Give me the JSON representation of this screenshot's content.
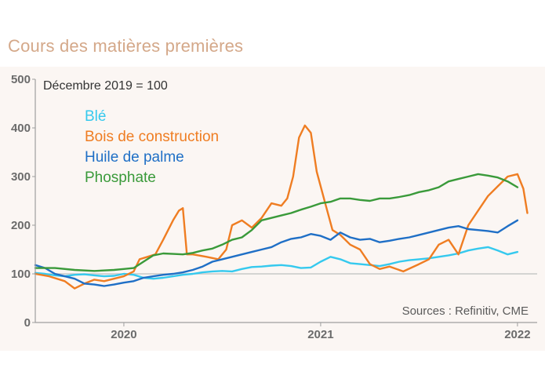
{
  "title": "Cours des matières premières",
  "chart_data": {
    "type": "line",
    "subtitle": "Décembre 2019 = 100",
    "source": "Sources : Refinitiv, CME",
    "ylim": [
      0,
      500
    ],
    "yticks": [
      "0",
      "100",
      "200",
      "300",
      "400",
      "500"
    ],
    "xlim": [
      2019.55,
      2022.1
    ],
    "xticks": [
      {
        "label": "2020",
        "value": 2020.0
      },
      {
        "label": "2021",
        "value": 2021.0
      },
      {
        "label": "2022",
        "value": 2022.0
      }
    ],
    "colors": {
      "ble": "#35c9ee",
      "bois": "#ef7d22",
      "huile": "#1f6fc6",
      "phosphate": "#3a9a3a",
      "axis": "#9e9e9e",
      "grid": "#c8c8c8"
    },
    "series": [
      {
        "name": "Blé",
        "key": "ble",
        "x": [
          2019.55,
          2019.6,
          2019.65,
          2019.7,
          2019.75,
          2019.8,
          2019.85,
          2019.9,
          2019.95,
          2020.0,
          2020.05,
          2020.1,
          2020.15,
          2020.2,
          2020.25,
          2020.3,
          2020.35,
          2020.4,
          2020.45,
          2020.5,
          2020.55,
          2020.6,
          2020.65,
          2020.7,
          2020.75,
          2020.8,
          2020.85,
          2020.9,
          2020.95,
          2021.0,
          2021.05,
          2021.1,
          2021.15,
          2021.2,
          2021.25,
          2021.3,
          2021.35,
          2021.4,
          2021.45,
          2021.5,
          2021.55,
          2021.6,
          2021.65,
          2021.7,
          2021.75,
          2021.8,
          2021.85,
          2021.9,
          2021.95,
          2022.0
        ],
        "values": [
          102,
          100,
          97,
          95,
          98,
          99,
          97,
          95,
          96,
          100,
          98,
          92,
          90,
          92,
          95,
          98,
          100,
          103,
          105,
          106,
          105,
          110,
          114,
          115,
          117,
          118,
          116,
          112,
          113,
          125,
          135,
          130,
          122,
          120,
          118,
          116,
          120,
          125,
          128,
          130,
          132,
          135,
          138,
          142,
          148,
          152,
          155,
          148,
          140,
          145
        ]
      },
      {
        "name": "Bois de construction",
        "key": "bois",
        "x": [
          2019.55,
          2019.62,
          2019.7,
          2019.75,
          2019.8,
          2019.85,
          2019.9,
          2019.95,
          2020.0,
          2020.05,
          2020.08,
          2020.12,
          2020.16,
          2020.2,
          2020.25,
          2020.28,
          2020.3,
          2020.32,
          2020.35,
          2020.42,
          2020.48,
          2020.52,
          2020.55,
          2020.6,
          2020.65,
          2020.7,
          2020.75,
          2020.8,
          2020.83,
          2020.86,
          2020.89,
          2020.92,
          2020.95,
          2020.98,
          2021.02,
          2021.06,
          2021.1,
          2021.15,
          2021.2,
          2021.25,
          2021.3,
          2021.35,
          2021.42,
          2021.5,
          2021.55,
          2021.6,
          2021.65,
          2021.7,
          2021.75,
          2021.8,
          2021.85,
          2021.9,
          2021.95,
          2022.0,
          2022.03,
          2022.05
        ],
        "values": [
          100,
          95,
          85,
          70,
          80,
          88,
          85,
          90,
          95,
          105,
          130,
          135,
          140,
          170,
          210,
          230,
          235,
          140,
          140,
          135,
          130,
          150,
          200,
          210,
          195,
          215,
          245,
          240,
          255,
          300,
          380,
          405,
          390,
          310,
          250,
          190,
          180,
          160,
          150,
          120,
          110,
          115,
          105,
          120,
          130,
          160,
          170,
          140,
          200,
          230,
          260,
          280,
          300,
          305,
          275,
          225
        ]
      },
      {
        "name": "Huile de palme",
        "key": "huile",
        "x": [
          2019.55,
          2019.6,
          2019.65,
          2019.7,
          2019.75,
          2019.8,
          2019.85,
          2019.9,
          2019.95,
          2020.0,
          2020.05,
          2020.1,
          2020.15,
          2020.2,
          2020.25,
          2020.3,
          2020.35,
          2020.4,
          2020.45,
          2020.5,
          2020.55,
          2020.6,
          2020.65,
          2020.7,
          2020.75,
          2020.8,
          2020.85,
          2020.9,
          2020.95,
          2021.0,
          2021.05,
          2021.1,
          2021.15,
          2021.2,
          2021.25,
          2021.3,
          2021.35,
          2021.4,
          2021.45,
          2021.5,
          2021.55,
          2021.6,
          2021.65,
          2021.7,
          2021.75,
          2021.8,
          2021.85,
          2021.9,
          2021.95,
          2022.0
        ],
        "values": [
          118,
          112,
          100,
          95,
          90,
          80,
          78,
          75,
          78,
          82,
          85,
          92,
          95,
          98,
          100,
          103,
          108,
          115,
          125,
          130,
          135,
          140,
          145,
          150,
          155,
          165,
          172,
          175,
          182,
          178,
          170,
          185,
          175,
          170,
          172,
          165,
          168,
          172,
          175,
          180,
          185,
          190,
          195,
          198,
          192,
          190,
          188,
          185,
          198,
          210
        ]
      },
      {
        "name": "Phosphate",
        "key": "phosphate",
        "x": [
          2019.55,
          2019.65,
          2019.75,
          2019.85,
          2019.95,
          2020.0,
          2020.05,
          2020.1,
          2020.15,
          2020.2,
          2020.25,
          2020.3,
          2020.35,
          2020.4,
          2020.45,
          2020.5,
          2020.55,
          2020.6,
          2020.65,
          2020.7,
          2020.75,
          2020.8,
          2020.85,
          2020.9,
          2020.95,
          2021.0,
          2021.05,
          2021.1,
          2021.15,
          2021.2,
          2021.25,
          2021.3,
          2021.35,
          2021.4,
          2021.45,
          2021.5,
          2021.55,
          2021.6,
          2021.65,
          2021.7,
          2021.75,
          2021.8,
          2021.85,
          2021.9,
          2021.95,
          2022.0
        ],
        "values": [
          112,
          112,
          108,
          106,
          108,
          110,
          112,
          125,
          138,
          142,
          141,
          140,
          143,
          148,
          152,
          160,
          170,
          175,
          190,
          210,
          215,
          220,
          225,
          232,
          238,
          245,
          248,
          255,
          255,
          252,
          250,
          255,
          255,
          258,
          262,
          268,
          272,
          278,
          290,
          295,
          300,
          305,
          302,
          298,
          290,
          278
        ]
      }
    ]
  }
}
